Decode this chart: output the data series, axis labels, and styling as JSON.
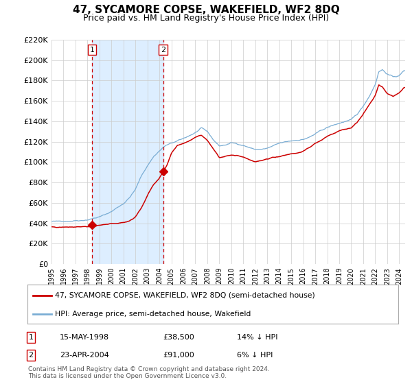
{
  "title": "47, SYCAMORE COPSE, WAKEFIELD, WF2 8DQ",
  "subtitle": "Price paid vs. HM Land Registry's House Price Index (HPI)",
  "legend_line1": "47, SYCAMORE COPSE, WAKEFIELD, WF2 8DQ (semi-detached house)",
  "legend_line2": "HPI: Average price, semi-detached house, Wakefield",
  "table_rows": [
    {
      "num": "1",
      "date": "15-MAY-1998",
      "price": "£38,500",
      "pct": "14% ↓ HPI"
    },
    {
      "num": "2",
      "date": "23-APR-2004",
      "price": "£91,000",
      "pct": "6% ↓ HPI"
    }
  ],
  "footnote": "Contains HM Land Registry data © Crown copyright and database right 2024.\nThis data is licensed under the Open Government Licence v3.0.",
  "sale1_date_num": 1998.37,
  "sale1_price": 38500,
  "sale2_date_num": 2004.31,
  "sale2_price": 91000,
  "vline1": 1998.37,
  "vline2": 2004.31,
  "shade_start": 1998.37,
  "shade_end": 2004.31,
  "ylim": [
    0,
    220000
  ],
  "xlim_start": 1995.0,
  "xlim_end": 2024.5,
  "red_color": "#cc0000",
  "blue_color": "#7aadd4",
  "shade_color": "#ddeeff",
  "grid_color": "#cccccc",
  "bg_color": "#ffffff",
  "yticks": [
    0,
    20000,
    40000,
    60000,
    80000,
    100000,
    120000,
    140000,
    160000,
    180000,
    200000,
    220000
  ],
  "xticks": [
    1995,
    1996,
    1997,
    1998,
    1999,
    2000,
    2001,
    2002,
    2003,
    2004,
    2005,
    2006,
    2007,
    2008,
    2009,
    2010,
    2011,
    2012,
    2013,
    2014,
    2015,
    2016,
    2017,
    2018,
    2019,
    2020,
    2021,
    2022,
    2023,
    2024
  ]
}
